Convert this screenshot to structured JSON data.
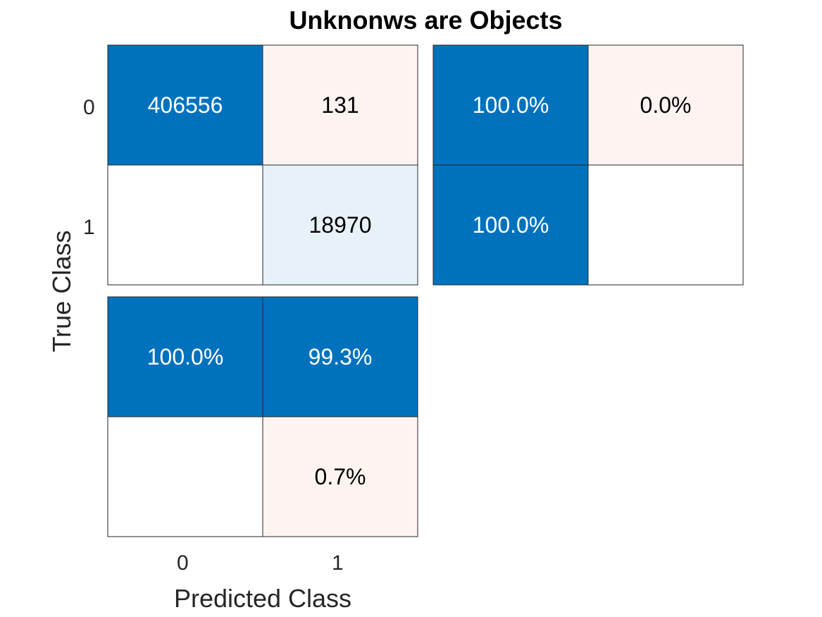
{
  "chart_data": {
    "type": "heatmap",
    "title": "Unknonws are Objects",
    "xlabel": "Predicted Class",
    "ylabel": "True Class",
    "classes": [
      "0",
      "1"
    ],
    "confusion_matrix": [
      [
        406556,
        131
      ],
      [
        0,
        18970
      ]
    ],
    "row_summary": [
      [
        "100.0%",
        "0.0%"
      ],
      [
        "100.0%",
        ""
      ]
    ],
    "column_summary": [
      [
        "100.0%",
        "99.3%"
      ],
      [
        "",
        "0.7%"
      ]
    ],
    "colors": {
      "strong": "#0072bd",
      "correct_light": "#e6f1f8",
      "error_light": "#fdf4f1",
      "empty": "#ffffff",
      "grid": "#262626"
    }
  }
}
